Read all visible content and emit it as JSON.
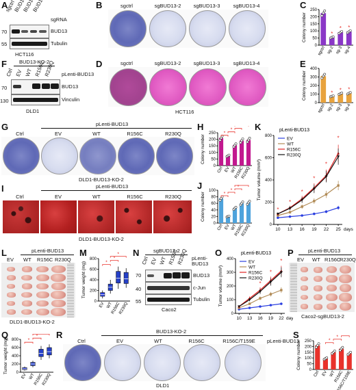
{
  "figure": {
    "A": {
      "letter": "A",
      "lanes": [
        "sgctrl",
        "BUD13-2",
        "BUD13-3",
        "BUD13-4"
      ],
      "row_label": "sgRNA",
      "bands": [
        "BUD13",
        "Tubulin"
      ],
      "mw": [
        "70",
        "55"
      ],
      "cell_line": "HCT116"
    },
    "B": {
      "letter": "B",
      "dishes": [
        "sgctrl",
        "sgBUD13-2",
        "sgBUD13-3",
        "sgBUD13-4"
      ]
    },
    "C": {
      "letter": "C",
      "ylabel": "Colony number"
    },
    "D": {
      "letter": "D",
      "dishes": [
        "sgctrl",
        "sgBUD13-2",
        "sgBUD13-3",
        "sgBUD13-4"
      ],
      "cell_line": "HCT116"
    },
    "E": {
      "letter": "E",
      "ylabel": "Colony number"
    },
    "F": {
      "letter": "F",
      "group": "BUD13-KO-2",
      "lanes": [
        "Ctrl",
        "EV",
        "WT",
        "R156C",
        "R230Q"
      ],
      "row_label": "pLenti-BUD13",
      "bands": [
        "BUD13",
        "Vinculin"
      ],
      "mw": [
        "70",
        "130"
      ],
      "cell_line": "DLD1"
    },
    "G": {
      "letter": "G",
      "header": "pLenti-BUD13",
      "dishes": [
        "Ctrl",
        "EV",
        "WT",
        "R156C",
        "R230Q"
      ],
      "caption": "DLD1-BUD13-KO-2"
    },
    "H": {
      "letter": "H",
      "ylabel": "Colony number"
    },
    "I": {
      "letter": "I",
      "header": "pLenti-BUD13",
      "dishes": [
        "Ctrl",
        "EV",
        "WT",
        "R156C",
        "R230Q"
      ],
      "caption": "DLD1-BUD13-KO-2"
    },
    "J": {
      "letter": "J",
      "ylabel": "Colony number"
    },
    "K": {
      "letter": "K",
      "title": "pLenti-BUD13",
      "ylabel": "Tumor volume (mm³)",
      "xunit": "days"
    },
    "L": {
      "letter": "L",
      "header": "pLenti-BUD13",
      "lanes": [
        "EV",
        "WT",
        "R156C",
        "R230Q"
      ],
      "caption": "DLD1-BUD13-KO-2"
    },
    "M": {
      "letter": "M",
      "ylabel": "Tumor weight (mg)"
    },
    "N": {
      "letter": "N",
      "group": "sgBUD13-2",
      "lanes": [
        "Ctrl",
        "EV",
        "WT",
        "R156C",
        "R230Q"
      ],
      "row_label": "pLenti-BUD13",
      "bands": [
        "BUD13",
        "c-Jun",
        "Tubulin"
      ],
      "mw": [
        "70",
        "40",
        "55"
      ],
      "cell_line": "Caco2"
    },
    "O": {
      "letter": "O",
      "title": "pLenti-BUD13",
      "ylabel": "Tumor volume (mm³)",
      "xunit": "days"
    },
    "P": {
      "letter": "P",
      "header": "pLenti-BUD13",
      "lanes": [
        "EV",
        "WT",
        "R156C",
        "R230Q"
      ],
      "caption": "Caco2-sgBUD13-2"
    },
    "Q": {
      "letter": "Q",
      "ylabel": "Tumor weight (mg)"
    },
    "R": {
      "letter": "R",
      "group": "BUD13-KO-2",
      "row_label": "pLenti-BUD13",
      "dishes": [
        "Ctrl",
        "EV",
        "WT",
        "R156C",
        "R156C/T159E"
      ],
      "cell_line": "DLD1"
    },
    "S": {
      "letter": "S",
      "ylabel": "Colony number"
    }
  },
  "colors": {
    "orange": "#e8a33d",
    "purple": "#8a37c7",
    "magenta": "#c2188f",
    "blue_bar": "#4ea3dc",
    "red_bar": "#e8322b",
    "star": "#e8322b",
    "ev": "#2b3fe0",
    "wt": "#b08a55",
    "r156c": "#e02020",
    "r230q": "#111111"
  },
  "chart_data": [
    {
      "id": "C",
      "type": "bar",
      "categories": [
        "sgctrl",
        "sg-2",
        "sg-3",
        "sg-4"
      ],
      "values": [
        225,
        55,
        90,
        95
      ],
      "ylim": [
        0,
        250
      ],
      "yticks": [
        0,
        50,
        100,
        150,
        200,
        250
      ],
      "ylabel": "Colony number",
      "significance": [
        "",
        "*",
        "*",
        "*"
      ]
    },
    {
      "id": "E",
      "type": "bar",
      "categories": [
        "sgctrl",
        "sg-2",
        "sg-3",
        "sg-4"
      ],
      "values": [
        310,
        75,
        105,
        110
      ],
      "ylim": [
        0,
        400
      ],
      "yticks": [
        0,
        100,
        200,
        300,
        400
      ],
      "ylabel": "Colony number",
      "significance": [
        "",
        "*",
        "*",
        "*"
      ]
    },
    {
      "id": "H",
      "type": "bar",
      "categories": [
        "Ctrl",
        "EV",
        "WT",
        "R156C",
        "R230Q"
      ],
      "values": [
        210,
        75,
        155,
        190,
        195
      ],
      "ylim": [
        0,
        250
      ],
      "yticks": [
        0,
        50,
        100,
        150,
        200,
        250
      ],
      "ylabel": "Colony number",
      "significance_pairs": [
        [
          "Ctrl",
          "EV"
        ],
        [
          "EV",
          "WT"
        ],
        [
          "WT",
          "R156C"
        ],
        [
          "WT",
          "R230Q"
        ]
      ]
    },
    {
      "id": "J",
      "type": "bar",
      "categories": [
        "Ctrl",
        "EV",
        "WT",
        "R156C",
        "R230Q"
      ],
      "values": [
        75,
        20,
        45,
        60,
        62
      ],
      "ylim": [
        0,
        100
      ],
      "yticks": [
        0,
        20,
        40,
        60,
        80,
        100
      ],
      "ylabel": "Colony number",
      "significance_pairs": [
        [
          "Ctrl",
          "EV"
        ],
        [
          "EV",
          "WT"
        ],
        [
          "WT",
          "R156C"
        ],
        [
          "WT",
          "R230Q"
        ]
      ]
    },
    {
      "id": "K",
      "type": "line",
      "title": "pLenti-BUD13",
      "x": [
        10,
        13,
        16,
        19,
        22,
        25
      ],
      "xlabel": "days",
      "ylabel": "Tumor volume (mm³)",
      "ylim": [
        0,
        800
      ],
      "yticks": [
        0,
        200,
        400,
        600,
        800
      ],
      "series": [
        {
          "name": "EV",
          "values": [
            60,
            70,
            80,
            95,
            115,
            150
          ]
        },
        {
          "name": "WT",
          "values": [
            80,
            110,
            160,
            210,
            270,
            350
          ]
        },
        {
          "name": "R156C",
          "values": [
            95,
            150,
            230,
            330,
            440,
            640
          ]
        },
        {
          "name": "R230Q",
          "values": [
            95,
            145,
            220,
            320,
            430,
            610
          ]
        }
      ],
      "significance_x": [
        10,
        13,
        16,
        19,
        22,
        25
      ]
    },
    {
      "id": "M",
      "type": "box",
      "categories": [
        "EV",
        "WT",
        "R156C",
        "R230Q"
      ],
      "ylabel": "Tumor weight (mg)",
      "ylim": [
        0,
        800
      ],
      "yticks": [
        0,
        200,
        400,
        600,
        800
      ],
      "medians": [
        120,
        260,
        430,
        420
      ],
      "q1": [
        90,
        200,
        340,
        330
      ],
      "q3": [
        160,
        320,
        560,
        540
      ],
      "min": [
        50,
        140,
        230,
        250
      ],
      "max": [
        200,
        400,
        650,
        620
      ],
      "significance_pairs": [
        [
          "EV",
          "WT"
        ],
        [
          "WT",
          "R156C"
        ],
        [
          "WT",
          "R230Q"
        ]
      ]
    },
    {
      "id": "O",
      "type": "line",
      "title": "pLenti-BUD13",
      "x": [
        10,
        13,
        16,
        19,
        22
      ],
      "xlabel": "days",
      "ylabel": "Tumor volume (mm³)",
      "ylim": [
        0,
        400
      ],
      "yticks": [
        0,
        100,
        200,
        300,
        400
      ],
      "series": [
        {
          "name": "EV",
          "values": [
            30,
            40,
            50,
            60,
            70
          ]
        },
        {
          "name": "WT",
          "values": [
            40,
            70,
            110,
            140,
            170
          ]
        },
        {
          "name": "R156C",
          "values": [
            50,
            110,
            170,
            240,
            310
          ]
        },
        {
          "name": "R230Q",
          "values": [
            50,
            100,
            160,
            230,
            300
          ]
        }
      ],
      "significance_x": [
        16,
        19,
        22
      ]
    },
    {
      "id": "Q",
      "type": "box",
      "categories": [
        "EV",
        "WT",
        "R156C",
        "R230Q"
      ],
      "ylabel": "Tumor weight (mg)",
      "ylim": [
        0,
        800
      ],
      "yticks": [
        0,
        200,
        400,
        600,
        800
      ],
      "medians": [
        80,
        200,
        460,
        500
      ],
      "q1": [
        60,
        160,
        380,
        420
      ],
      "q3": [
        110,
        240,
        560,
        600
      ],
      "min": [
        40,
        120,
        300,
        340
      ],
      "max": [
        140,
        280,
        640,
        680
      ],
      "significance_pairs": [
        [
          "EV",
          "WT"
        ],
        [
          "WT",
          "R156C"
        ],
        [
          "WT",
          "R230Q"
        ]
      ]
    },
    {
      "id": "S",
      "type": "bar",
      "categories": [
        "Ctrl",
        "EV",
        "WT",
        "R156C",
        "R156C/T159E"
      ],
      "values": [
        210,
        95,
        150,
        180,
        140
      ],
      "ylim": [
        0,
        250
      ],
      "yticks": [
        0,
        50,
        100,
        150,
        200,
        250
      ],
      "ylabel": "Colony number",
      "significance_pairs": [
        [
          "EV",
          "WT"
        ],
        [
          "WT",
          "R156C"
        ],
        [
          "R156C",
          "R156C/T159E"
        ]
      ]
    }
  ]
}
